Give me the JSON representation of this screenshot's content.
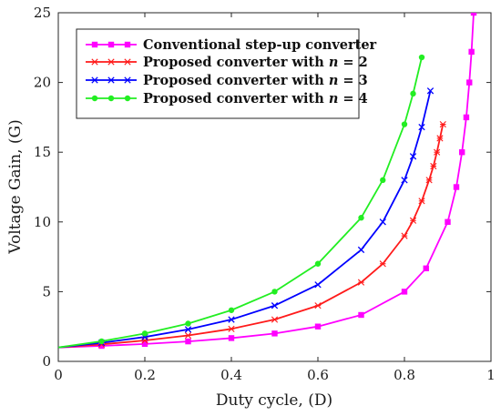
{
  "chart_data": {
    "type": "line",
    "xlabel": "Duty cycle, (D)",
    "ylabel": "Voltage Gain, (G)",
    "xlim": [
      0,
      1
    ],
    "ylim": [
      0,
      25
    ],
    "xticks": [
      0,
      0.2,
      0.4,
      0.6,
      0.8,
      1
    ],
    "xtick_labels": [
      "0",
      "0.2",
      "0.4",
      "0.6",
      "0.8",
      "1"
    ],
    "yticks": [
      0,
      5,
      10,
      15,
      20,
      25
    ],
    "ytick_labels": [
      "0",
      "5",
      "10",
      "15",
      "20",
      "25"
    ],
    "grid": false,
    "legend_position": "top-left",
    "series": [
      {
        "name": "Conventional step-up converter",
        "legend_prefix": "Conventional step-up converter",
        "legend_var": "",
        "legend_suffix": "",
        "color": "#ff00ff",
        "marker": "square",
        "x": [
          0,
          0.1,
          0.2,
          0.3,
          0.4,
          0.5,
          0.6,
          0.7,
          0.8,
          0.85,
          0.9,
          0.92,
          0.933,
          0.943,
          0.95,
          0.955,
          0.96
        ],
        "y": [
          1,
          1.11,
          1.25,
          1.43,
          1.67,
          2,
          2.5,
          3.33,
          5,
          6.67,
          10,
          12.5,
          15,
          17.5,
          20,
          22.2,
          25
        ]
      },
      {
        "name": "Proposed converter with n = 2",
        "legend_prefix": "Proposed converter with ",
        "legend_var": "n",
        "legend_suffix": " = 2",
        "color": "#ff1a1a",
        "marker": "star",
        "x": [
          0,
          0.1,
          0.2,
          0.3,
          0.4,
          0.5,
          0.6,
          0.7,
          0.75,
          0.8,
          0.82,
          0.84,
          0.857,
          0.867,
          0.875,
          0.882,
          0.889
        ],
        "y": [
          1,
          1.22,
          1.5,
          1.86,
          2.33,
          3,
          4,
          5.67,
          7,
          9,
          10.1,
          11.5,
          13,
          14,
          15,
          16,
          17
        ]
      },
      {
        "name": "Proposed converter with n = 3",
        "legend_prefix": "Proposed converter with ",
        "legend_var": "n",
        "legend_suffix": " = 3",
        "color": "#0000ff",
        "marker": "x",
        "x": [
          0,
          0.1,
          0.2,
          0.3,
          0.4,
          0.5,
          0.6,
          0.7,
          0.75,
          0.8,
          0.82,
          0.84,
          0.86
        ],
        "y": [
          1,
          1.33,
          1.75,
          2.29,
          3,
          4,
          5.5,
          8,
          10,
          13,
          14.7,
          16.8,
          19.4
        ]
      },
      {
        "name": "Proposed converter with n = 4",
        "legend_prefix": "Proposed converter with ",
        "legend_var": "n",
        "legend_suffix": " = 4",
        "color": "#22ee22",
        "marker": "circle",
        "x": [
          0,
          0.1,
          0.2,
          0.3,
          0.4,
          0.5,
          0.6,
          0.7,
          0.75,
          0.8,
          0.82,
          0.84
        ],
        "y": [
          1,
          1.44,
          2,
          2.71,
          3.67,
          5,
          7,
          10.3,
          13,
          17,
          19.2,
          21.8
        ]
      }
    ]
  }
}
